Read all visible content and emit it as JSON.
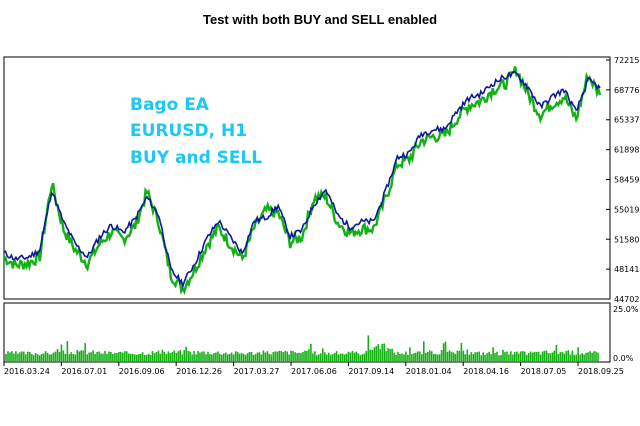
{
  "page": {
    "title": "Test with both BUY and SELL enabled"
  },
  "colors": {
    "balance": "#0a1a9a",
    "equity": "#13b013",
    "deposit_load": "#14b014",
    "axis": "#000000",
    "overlay_text": "#1ec8f2"
  },
  "chart_data": [
    {
      "type": "line",
      "annotation_lines": [
        "Bago EA",
        "EURUSD, H1",
        "BUY and SELL"
      ],
      "x_tick_labels": [
        "2016.03.24",
        "2016.07.01",
        "2016.09.06",
        "2016.12.26",
        "2017.03.27",
        "2017.06.06",
        "2017.09.14",
        "2018.01.04",
        "2018.04.16",
        "2018.07.05",
        "2018.09.25"
      ],
      "y_tick_labels": [
        "72215",
        "68776",
        "65337",
        "61898",
        "58459",
        "55019",
        "51580",
        "48141",
        "44702"
      ],
      "ylim": [
        44702,
        72215
      ],
      "series": [
        {
          "kind": "balance",
          "x": [
            0,
            0.02,
            0.04,
            0.06,
            0.08,
            0.1,
            0.12,
            0.14,
            0.16,
            0.18,
            0.2,
            0.22,
            0.24,
            0.26,
            0.28,
            0.3,
            0.32,
            0.34,
            0.36,
            0.38,
            0.4,
            0.42,
            0.44,
            0.46,
            0.48,
            0.5,
            0.52,
            0.54,
            0.56,
            0.58,
            0.6,
            0.62,
            0.64,
            0.66,
            0.68,
            0.7,
            0.72,
            0.74,
            0.76,
            0.78,
            0.8,
            0.82,
            0.84,
            0.86,
            0.88,
            0.9,
            0.92,
            0.94,
            0.96,
            0.98,
            1.0
          ],
          "values": [
            50000,
            49300,
            49500,
            50300,
            57200,
            53500,
            51000,
            49500,
            51800,
            53200,
            52400,
            53900,
            56400,
            54300,
            48000,
            46500,
            48800,
            51600,
            53700,
            51800,
            50000,
            53700,
            54100,
            55400,
            51900,
            52600,
            55600,
            57300,
            54300,
            53000,
            53600,
            53600,
            57000,
            61000,
            61500,
            63700,
            64200,
            64300,
            66300,
            67800,
            68300,
            69500,
            70300,
            70600,
            69000,
            66800,
            68000,
            68800,
            66200,
            69900,
            69000
          ]
        },
        {
          "kind": "equity",
          "x": [
            0,
            0.02,
            0.04,
            0.06,
            0.08,
            0.1,
            0.12,
            0.14,
            0.16,
            0.18,
            0.2,
            0.22,
            0.24,
            0.26,
            0.28,
            0.3,
            0.32,
            0.34,
            0.36,
            0.38,
            0.4,
            0.42,
            0.44,
            0.46,
            0.48,
            0.5,
            0.52,
            0.54,
            0.56,
            0.58,
            0.6,
            0.62,
            0.64,
            0.66,
            0.68,
            0.7,
            0.72,
            0.74,
            0.76,
            0.78,
            0.8,
            0.82,
            0.84,
            0.86,
            0.88,
            0.9,
            0.92,
            0.94,
            0.96,
            0.98,
            1.0
          ],
          "values": [
            49500,
            48600,
            48800,
            49600,
            58000,
            52700,
            50300,
            48800,
            51000,
            52400,
            51600,
            53100,
            57000,
            53500,
            47500,
            45900,
            48100,
            50900,
            52900,
            51000,
            49300,
            52900,
            54900,
            54600,
            51200,
            51900,
            56300,
            56500,
            53500,
            52300,
            52800,
            52800,
            56200,
            60200,
            60800,
            62900,
            63400,
            63500,
            65500,
            67000,
            67500,
            68800,
            69400,
            71100,
            68200,
            65900,
            67200,
            68000,
            65400,
            70500,
            68200
          ]
        },
        {
          "kind": "deposit_load",
          "ylim_percent": [
            0,
            25
          ],
          "y_tick_labels": [
            "25.0%",
            "0.0%"
          ],
          "x": [
            0,
            0.06,
            0.13,
            0.2,
            0.27,
            0.33,
            0.4,
            0.47,
            0.53,
            0.6,
            0.63,
            0.66,
            0.73,
            0.8,
            0.87,
            0.93,
            1.0
          ],
          "values": [
            4,
            4,
            4.5,
            4,
            4.5,
            4.5,
            4,
            4.5,
            4,
            4,
            8,
            4,
            4.5,
            4,
            4,
            4.5,
            4
          ]
        }
      ]
    }
  ]
}
